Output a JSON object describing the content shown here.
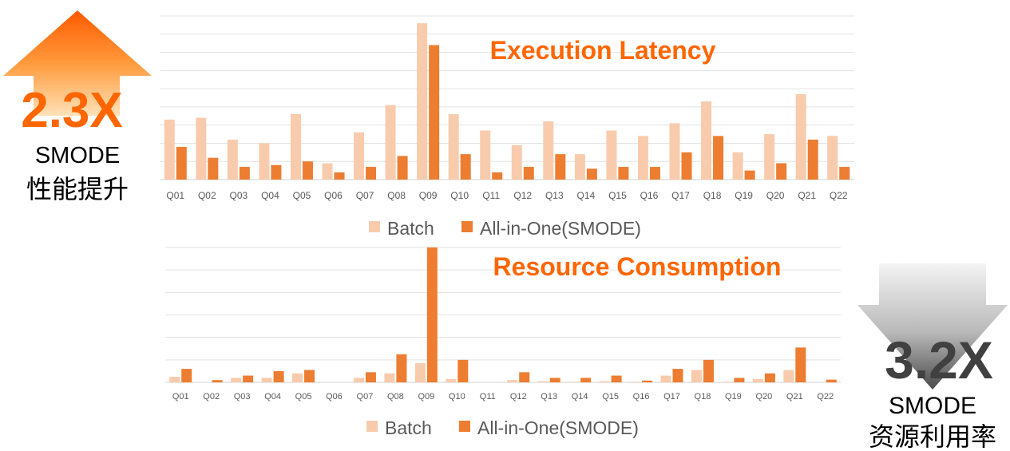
{
  "left_callout": {
    "value": "2.3X",
    "title": "SMODE",
    "subtitle": "性能提升",
    "color": "#FF6600"
  },
  "right_callout": {
    "value": "3.2X",
    "title": "SMODE",
    "subtitle": "资源利用率",
    "color": "#404040"
  },
  "chart_data": [
    {
      "type": "bar",
      "title": "Execution Latency",
      "categories": [
        "Q01",
        "Q02",
        "Q03",
        "Q04",
        "Q05",
        "Q06",
        "Q07",
        "Q08",
        "Q09",
        "Q10",
        "Q11",
        "Q12",
        "Q13",
        "Q14",
        "Q15",
        "Q16",
        "Q17",
        "Q18",
        "Q19",
        "Q20",
        "Q21",
        "Q22"
      ],
      "series": [
        {
          "name": "Batch",
          "color": "#F8CBAD",
          "values": [
            33,
            34,
            22,
            20,
            36,
            9,
            26,
            41,
            86,
            36,
            27,
            19,
            32,
            14,
            27,
            24,
            31,
            43,
            15,
            25,
            47,
            24
          ]
        },
        {
          "name": "All-in-One(SMODE)",
          "color": "#ED7D31",
          "values": [
            18,
            12,
            7,
            8,
            10,
            4,
            7,
            13,
            74,
            14,
            4,
            7,
            14,
            6,
            7,
            7,
            15,
            24,
            5,
            9,
            22,
            7
          ]
        }
      ],
      "ylim": [
        0,
        90
      ],
      "grid": true,
      "legend": "bottom"
    },
    {
      "type": "bar",
      "title": "Resource Consumption",
      "categories": [
        "Q01",
        "Q02",
        "Q03",
        "Q04",
        "Q05",
        "Q06",
        "Q07",
        "Q08",
        "Q09",
        "Q10",
        "Q11",
        "Q12",
        "Q13",
        "Q14",
        "Q15",
        "Q16",
        "Q17",
        "Q18",
        "Q19",
        "Q20",
        "Q21",
        "Q22"
      ],
      "series": [
        {
          "name": "Batch",
          "color": "#F8CBAD",
          "values": [
            2.5,
            0,
            2,
            2,
            4,
            0,
            2,
            4,
            8.5,
            1.5,
            0,
            1,
            0.5,
            0.3,
            0.5,
            0.3,
            3,
            5.5,
            0.3,
            1.5,
            5.5,
            0
          ]
        },
        {
          "name": "All-in-One(SMODE)",
          "color": "#ED7D31",
          "values": [
            6,
            1,
            3,
            5,
            5.5,
            0,
            4.5,
            12.5,
            60,
            10,
            0,
            4.5,
            2,
            2,
            3,
            0.8,
            6,
            10,
            2,
            4,
            15.5,
            1.2
          ]
        }
      ],
      "ylim": [
        0,
        60
      ],
      "grid": true,
      "legend": "bottom"
    }
  ]
}
